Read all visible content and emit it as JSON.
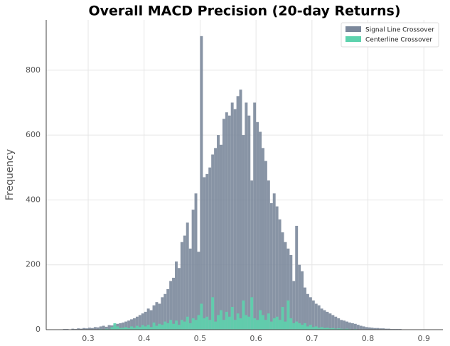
{
  "chart_data": {
    "type": "histogram",
    "title": "Overall MACD Precision (20-day Returns)",
    "y_label": "Frequency",
    "bins": [
      0.25,
      0.255,
      0.26,
      0.265,
      0.27,
      0.275,
      0.28,
      0.285,
      0.29,
      0.295,
      0.3,
      0.305,
      0.31,
      0.315,
      0.32,
      0.325,
      0.33,
      0.335,
      0.34,
      0.345,
      0.35,
      0.355,
      0.36,
      0.365,
      0.37,
      0.375,
      0.38,
      0.385,
      0.39,
      0.395,
      0.4,
      0.405,
      0.41,
      0.415,
      0.42,
      0.425,
      0.43,
      0.435,
      0.44,
      0.445,
      0.45,
      0.455,
      0.46,
      0.465,
      0.47,
      0.475,
      0.48,
      0.485,
      0.49,
      0.495,
      0.5,
      0.505,
      0.51,
      0.515,
      0.52,
      0.525,
      0.53,
      0.535,
      0.54,
      0.545,
      0.55,
      0.555,
      0.56,
      0.565,
      0.57,
      0.575,
      0.58,
      0.585,
      0.59,
      0.595,
      0.6,
      0.605,
      0.61,
      0.615,
      0.62,
      0.625,
      0.63,
      0.635,
      0.64,
      0.645,
      0.65,
      0.655,
      0.66,
      0.665,
      0.67,
      0.675,
      0.68,
      0.685,
      0.69,
      0.695,
      0.7,
      0.705,
      0.71,
      0.715,
      0.72,
      0.725,
      0.73,
      0.735,
      0.74,
      0.745,
      0.75,
      0.755,
      0.76,
      0.765,
      0.77,
      0.775,
      0.78,
      0.785,
      0.79,
      0.795,
      0.8,
      0.805,
      0.81,
      0.815,
      0.82,
      0.825,
      0.83,
      0.835,
      0.84,
      0.845,
      0.85,
      0.855,
      0.86,
      0.865,
      0.87,
      0.875,
      0.88,
      0.885,
      0.89,
      0.895,
      0.9,
      0.905,
      0.91
    ],
    "series": [
      {
        "name": "Signal Line Crossover",
        "color": "#7b889b",
        "values": [
          1,
          2,
          2,
          1,
          3,
          2,
          4,
          3,
          5,
          4,
          6,
          5,
          8,
          7,
          10,
          12,
          9,
          14,
          13,
          16,
          18,
          20,
          22,
          25,
          28,
          32,
          35,
          40,
          45,
          50,
          55,
          65,
          60,
          75,
          85,
          80,
          100,
          110,
          125,
          150,
          160,
          210,
          190,
          270,
          290,
          330,
          250,
          370,
          420,
          240,
          905,
          470,
          480,
          500,
          540,
          560,
          600,
          570,
          650,
          670,
          660,
          700,
          680,
          720,
          740,
          600,
          700,
          660,
          460,
          700,
          640,
          610,
          560,
          520,
          460,
          390,
          420,
          380,
          340,
          300,
          270,
          250,
          230,
          150,
          320,
          200,
          180,
          130,
          110,
          100,
          90,
          80,
          75,
          65,
          60,
          55,
          50,
          45,
          40,
          35,
          30,
          28,
          25,
          22,
          20,
          18,
          15,
          12,
          10,
          8,
          7,
          6,
          5,
          5,
          4,
          4,
          3,
          3,
          2,
          2,
          2,
          2,
          1,
          1,
          1,
          1,
          0,
          1,
          0,
          0,
          1,
          0
        ]
      },
      {
        "name": "Centerline Crossover",
        "color": "#5dd2ad",
        "values": [
          0,
          0,
          0,
          0,
          0,
          0,
          1,
          0,
          0,
          0,
          0,
          1,
          0,
          1,
          2,
          1,
          3,
          2,
          8,
          20,
          10,
          5,
          6,
          8,
          5,
          10,
          6,
          12,
          8,
          14,
          10,
          15,
          8,
          22,
          12,
          18,
          15,
          25,
          20,
          30,
          18,
          28,
          15,
          30,
          25,
          40,
          20,
          35,
          30,
          45,
          80,
          35,
          40,
          30,
          100,
          25,
          45,
          60,
          30,
          55,
          40,
          70,
          30,
          50,
          35,
          90,
          45,
          40,
          100,
          35,
          30,
          60,
          45,
          30,
          50,
          25,
          35,
          40,
          30,
          70,
          25,
          90,
          35,
          20,
          25,
          20,
          15,
          20,
          10,
          15,
          8,
          10,
          6,
          8,
          5,
          6,
          4,
          5,
          3,
          4,
          3,
          2,
          3,
          2,
          1,
          2,
          1,
          1,
          0,
          1,
          0,
          0,
          1,
          0,
          0,
          0,
          0,
          0,
          0,
          0,
          0,
          0,
          0,
          0,
          0,
          0,
          0,
          0,
          0,
          0,
          0,
          0
        ]
      }
    ],
    "xlim": [
      0.225,
      0.934
    ],
    "ylim": [
      0,
      955
    ],
    "xticks": [
      0.3,
      0.4,
      0.5,
      0.6,
      0.7,
      0.8,
      0.9
    ],
    "yticks": [
      0,
      200,
      400,
      600,
      800
    ],
    "grid": true,
    "legend": "upper right"
  }
}
